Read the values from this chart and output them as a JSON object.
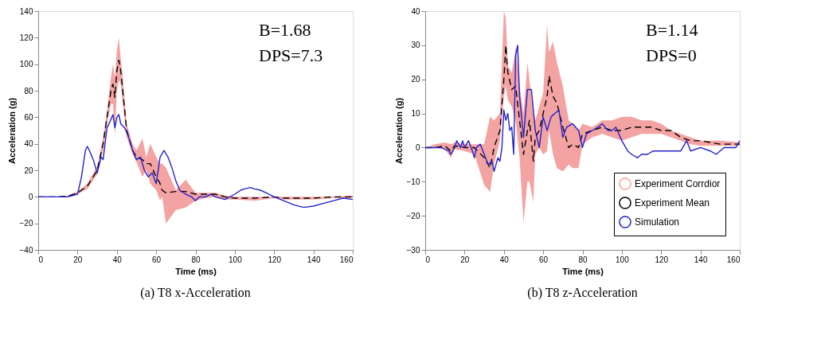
{
  "chart_data": [
    {
      "type": "line",
      "title": "(a) T8 x-Acceleration",
      "xlabel": "Time (ms)",
      "ylabel": "Acceleration (g)",
      "xlim": [
        0,
        160
      ],
      "ylim": [
        -40,
        140
      ],
      "xticks": [
        0,
        20,
        40,
        60,
        80,
        100,
        120,
        140,
        160
      ],
      "yticks": [
        -40,
        -20,
        0,
        20,
        40,
        60,
        80,
        100,
        120,
        140
      ],
      "grid": false,
      "legend": false,
      "annotations": [
        "B=1.68",
        "DPS=7.3"
      ],
      "series": [
        {
          "type": "area",
          "color": "#f4a3a3"
        },
        {
          "type": "line",
          "line_style": "dashed",
          "color": "#000000",
          "x": [
            0,
            10,
            15,
            20,
            25,
            30,
            33,
            35,
            37,
            38,
            39,
            40,
            41,
            42,
            43,
            45,
            48,
            50,
            53,
            55,
            57,
            60,
            62,
            63,
            65,
            70,
            75,
            80,
            85,
            90,
            95,
            100,
            110,
            120,
            125,
            130,
            140,
            150,
            160
          ],
          "values": [
            0,
            0,
            0.5,
            3,
            8,
            20,
            40,
            60,
            80,
            85,
            75,
            95,
            103,
            95,
            80,
            50,
            35,
            30,
            28,
            25,
            25,
            15,
            10,
            5,
            3,
            4,
            4,
            2,
            2,
            2,
            0,
            -1,
            -1,
            0,
            -1,
            -1,
            -1,
            0,
            0
          ],
          "lower": [
            0,
            0,
            0,
            2,
            6,
            17,
            35,
            55,
            70,
            70,
            46,
            80,
            88,
            85,
            70,
            45,
            32,
            26,
            15,
            20,
            10,
            5,
            -3,
            0,
            -20,
            -10,
            -8,
            -3,
            -1,
            0,
            -2,
            -2,
            -3,
            -1,
            -2,
            -2,
            -2,
            -1,
            -1
          ],
          "upper": [
            0,
            0,
            1,
            4,
            10,
            23,
            45,
            65,
            90,
            100,
            90,
            110,
            120,
            104,
            90,
            55,
            40,
            35,
            44,
            30,
            40,
            30,
            25,
            25,
            22,
            5,
            13,
            3,
            3,
            3,
            1,
            0,
            0,
            0,
            0,
            0,
            0,
            0,
            1
          ]
        },
        {
          "type": "line",
          "line_style": "solid",
          "color": "#2222cc",
          "x": [
            0,
            15,
            20,
            22,
            24,
            25,
            26,
            28,
            30,
            32,
            33,
            35,
            36,
            38,
            39,
            40,
            41,
            42,
            44,
            46,
            48,
            50,
            52,
            54,
            56,
            58,
            60,
            62,
            64,
            66,
            68,
            70,
            72,
            75,
            78,
            80,
            82,
            85,
            88,
            90,
            95,
            100,
            103,
            105,
            108,
            110,
            113,
            116,
            120,
            125,
            130,
            135,
            140,
            145,
            150,
            155,
            160
          ],
          "values": [
            0,
            0,
            2,
            15,
            35,
            38,
            35,
            28,
            18,
            30,
            28,
            52,
            55,
            62,
            52,
            60,
            62,
            55,
            52,
            45,
            35,
            28,
            30,
            20,
            15,
            18,
            10,
            30,
            35,
            30,
            22,
            12,
            5,
            2,
            0,
            -3,
            0,
            0,
            2,
            0,
            -2,
            2,
            5,
            6,
            7,
            6,
            5,
            3,
            0,
            -3,
            -6,
            -8,
            -7,
            -5,
            -3,
            -1,
            -2
          ]
        }
      ]
    },
    {
      "type": "line",
      "title": "(b) T8 z-Acceleration",
      "xlabel": "Time (ms)",
      "ylabel": "Acceleration (g)",
      "xlim": [
        0,
        160
      ],
      "ylim": [
        -30,
        40
      ],
      "xticks": [
        0,
        20,
        40,
        60,
        80,
        100,
        120,
        140,
        160
      ],
      "yticks": [
        -30,
        -20,
        -10,
        0,
        10,
        20,
        30,
        40
      ],
      "grid": false,
      "legend": "bottom right",
      "annotations": [
        "B=1.14",
        "DPS=0"
      ],
      "series": [
        {
          "type": "area",
          "name": "Experiment Corrdior",
          "color": "#f4a3a3"
        },
        {
          "type": "line",
          "name": "Experiment Mean",
          "line_style": "dashed",
          "color": "#000000",
          "x": [
            0,
            5,
            10,
            13,
            15,
            20,
            25,
            30,
            33,
            35,
            38,
            40,
            41,
            42,
            44,
            46,
            48,
            50,
            52,
            53,
            55,
            56,
            58,
            60,
            62,
            63,
            65,
            67,
            70,
            73,
            75,
            78,
            80,
            85,
            90,
            95,
            100,
            105,
            110,
            115,
            120,
            125,
            130,
            135,
            140,
            150,
            160
          ],
          "values": [
            0,
            0,
            0.5,
            -1,
            0.5,
            0,
            0,
            -3,
            -6,
            0,
            5,
            20,
            30,
            22,
            17,
            18,
            8,
            -2,
            5,
            8,
            -4,
            3,
            5,
            10,
            15,
            21,
            15,
            13,
            6,
            0,
            1,
            0,
            4,
            5,
            6,
            5,
            5,
            6,
            6,
            6,
            5,
            5,
            3,
            2,
            2,
            1,
            1
          ],
          "lower": [
            0,
            0,
            -0.5,
            -3,
            -0.5,
            -1,
            -2,
            -11,
            -13,
            -5,
            2,
            15,
            18,
            14,
            12,
            8,
            -3,
            -22,
            -10,
            -10,
            -16,
            -2,
            0,
            -2,
            -1,
            5,
            -2,
            -6,
            -7,
            -5,
            -6,
            -6,
            1,
            3,
            4,
            3,
            2,
            3,
            4,
            4,
            4,
            3,
            2,
            1,
            0.5,
            0.5,
            0.5
          ],
          "upper": [
            0,
            1,
            1.5,
            1,
            1.5,
            1,
            1,
            1,
            9,
            8,
            10,
            40,
            38,
            24,
            22,
            29,
            18,
            10,
            25,
            20,
            10,
            8,
            12,
            16,
            36,
            28,
            31,
            25,
            18,
            8,
            7,
            5,
            7,
            6,
            8,
            8,
            9,
            9,
            8,
            8,
            7,
            5,
            4,
            3,
            2,
            2,
            1.5
          ]
        },
        {
          "type": "line",
          "name": "Simulation",
          "line_style": "solid",
          "color": "#2222cc",
          "x": [
            0,
            8,
            12,
            13,
            15,
            16,
            18,
            19,
            20,
            22,
            24,
            25,
            26,
            28,
            30,
            32,
            34,
            35,
            37,
            38,
            39,
            40,
            41,
            42,
            43,
            44,
            45,
            46,
            47,
            48,
            50,
            52,
            54,
            56,
            58,
            60,
            62,
            64,
            66,
            68,
            70,
            72,
            75,
            78,
            80,
            82,
            85,
            88,
            90,
            93,
            95,
            97,
            100,
            103,
            105,
            108,
            110,
            113,
            116,
            118,
            120,
            125,
            130,
            133,
            135,
            140,
            145,
            148,
            152,
            158,
            160
          ],
          "values": [
            0,
            0,
            -1,
            -2,
            0,
            2,
            0,
            2,
            0,
            2,
            -1,
            -3,
            0,
            1,
            -2,
            -5,
            -4,
            -7,
            -3,
            -4,
            0,
            11,
            8,
            10,
            5,
            6,
            -2,
            27,
            30,
            15,
            3,
            17,
            17,
            5,
            0,
            9,
            5,
            9,
            10,
            11,
            3,
            6,
            7,
            5,
            0,
            4,
            5,
            6,
            7,
            5,
            5,
            6,
            2,
            -1,
            -2,
            -3,
            -2,
            -2,
            -1,
            -1,
            -1,
            -1,
            -1,
            2,
            -1,
            0,
            -1,
            -2,
            0,
            0,
            2
          ]
        }
      ]
    }
  ]
}
